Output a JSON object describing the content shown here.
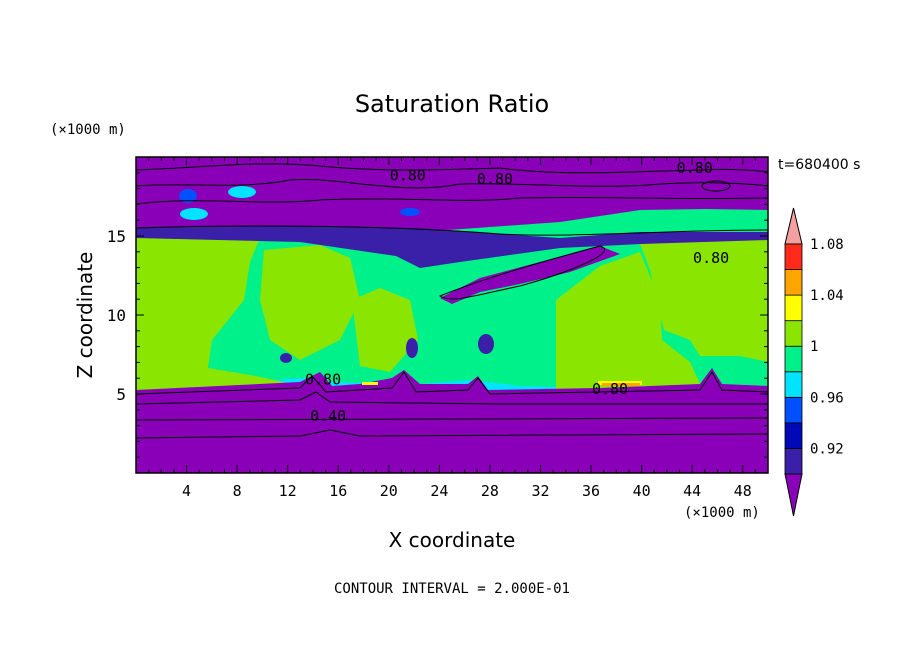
{
  "chart_data": {
    "type": "filled-contour",
    "title": "Saturation Ratio",
    "xlabel": "X coordinate",
    "ylabel": "Z coordinate",
    "x_unit": "(×1000 m)",
    "y_unit": "(×1000 m)",
    "time_label": "t=680400 s",
    "footer": "CONTOUR INTERVAL = 2.000E-01",
    "xlim": [
      0,
      50
    ],
    "ylim": [
      0,
      20
    ],
    "x_ticks": [
      4,
      8,
      12,
      16,
      20,
      24,
      28,
      32,
      36,
      40,
      44,
      48
    ],
    "y_ticks": [
      5,
      10,
      15
    ],
    "contour_interval": 0.2,
    "colorbar": {
      "levels": [
        0.9,
        0.92,
        0.94,
        0.96,
        0.98,
        1.0,
        1.02,
        1.04,
        1.06,
        1.08,
        1.1
      ],
      "tick_labels": [
        "0.92",
        "0.96",
        "1",
        "1.04",
        "1.08"
      ],
      "colors": [
        "#8a00b8",
        "#3a1fa8",
        "#0009b8",
        "#0050ff",
        "#00e4ff",
        "#00f08a",
        "#8ae600",
        "#ffff00",
        "#ffa500",
        "#ff2a1a",
        "#f4a0a0"
      ],
      "extend": "both"
    },
    "contour_labels": [
      {
        "x": 21.5,
        "y": 18.5,
        "text": "0.80"
      },
      {
        "x": 28.4,
        "y": 18.3,
        "text": "0.80"
      },
      {
        "x": 44.2,
        "y": 19.0,
        "text": "0.80"
      },
      {
        "x": 45.5,
        "y": 13.3,
        "text": "0.80"
      },
      {
        "x": 14.8,
        "y": 5.6,
        "text": "0.80"
      },
      {
        "x": 37.5,
        "y": 5.0,
        "text": "0.80"
      },
      {
        "x": 15.2,
        "y": 3.3,
        "text": "0.40"
      }
    ]
  }
}
